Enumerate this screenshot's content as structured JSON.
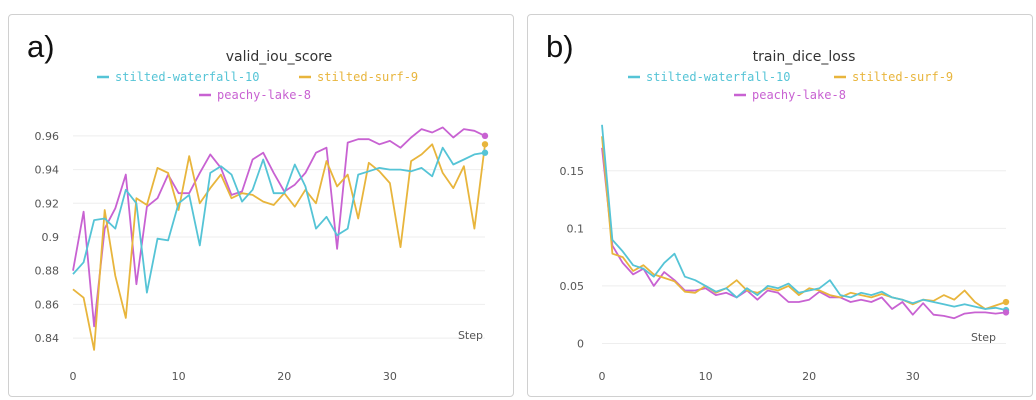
{
  "chart_data": [
    {
      "type": "line",
      "panel_label": "a)",
      "title": "valid_iou_score",
      "xlabel": "Step",
      "ylabel": "",
      "xlim": [
        0,
        39
      ],
      "ylim": [
        0.83,
        0.97
      ],
      "xticks": [
        0,
        10,
        20,
        30
      ],
      "yticks": [
        0.84,
        0.86,
        0.88,
        0.9,
        0.92,
        0.94,
        0.96
      ],
      "ytick_labels": [
        "0.84",
        "0.86",
        "0.88",
        "0.9",
        "0.92",
        "0.94",
        "0.96"
      ],
      "legend_position": "top",
      "grid": true,
      "series": [
        {
          "name": "stilted-waterfall-10",
          "color": "#55c4d6",
          "values": [
            0.878,
            0.885,
            0.91,
            0.911,
            0.905,
            0.928,
            0.92,
            0.867,
            0.899,
            0.898,
            0.92,
            0.925,
            0.895,
            0.938,
            0.942,
            0.937,
            0.921,
            0.928,
            0.946,
            0.926,
            0.926,
            0.943,
            0.93,
            0.905,
            0.912,
            0.901,
            0.905,
            0.937,
            0.939,
            0.941,
            0.94,
            0.94,
            0.939,
            0.941,
            0.936,
            0.953,
            0.943,
            0.946,
            0.949,
            0.95
          ]
        },
        {
          "name": "stilted-surf-9",
          "color": "#e8b53c",
          "values": [
            0.869,
            0.864,
            0.833,
            0.916,
            0.877,
            0.852,
            0.923,
            0.919,
            0.941,
            0.938,
            0.916,
            0.948,
            0.92,
            0.929,
            0.937,
            0.923,
            0.926,
            0.925,
            0.921,
            0.919,
            0.926,
            0.918,
            0.928,
            0.92,
            0.945,
            0.93,
            0.937,
            0.911,
            0.944,
            0.939,
            0.932,
            0.894,
            0.945,
            0.949,
            0.955,
            0.938,
            0.929,
            0.942,
            0.905,
            0.955
          ]
        },
        {
          "name": "peachy-lake-8",
          "color": "#c862d2",
          "values": [
            0.88,
            0.915,
            0.847,
            0.905,
            0.917,
            0.937,
            0.872,
            0.918,
            0.923,
            0.937,
            0.926,
            0.926,
            0.938,
            0.949,
            0.941,
            0.925,
            0.927,
            0.946,
            0.95,
            0.938,
            0.927,
            0.931,
            0.938,
            0.95,
            0.953,
            0.893,
            0.956,
            0.958,
            0.958,
            0.955,
            0.957,
            0.953,
            0.959,
            0.964,
            0.962,
            0.965,
            0.959,
            0.964,
            0.963,
            0.96
          ]
        }
      ]
    },
    {
      "type": "line",
      "panel_label": "b)",
      "title": "train_dice_loss",
      "xlabel": "Step",
      "ylabel": "",
      "xlim": [
        0,
        39
      ],
      "ylim": [
        -0.01,
        0.195
      ],
      "xticks": [
        0,
        10,
        20,
        30
      ],
      "yticks": [
        0,
        0.05,
        0.1,
        0.15
      ],
      "ytick_labels": [
        "0",
        "0.05",
        "0.1",
        "0.15"
      ],
      "legend_position": "top",
      "grid": true,
      "series": [
        {
          "name": "stilted-waterfall-10",
          "color": "#55c4d6",
          "values": [
            0.19,
            0.09,
            0.08,
            0.068,
            0.065,
            0.058,
            0.07,
            0.078,
            0.058,
            0.055,
            0.05,
            0.045,
            0.048,
            0.04,
            0.048,
            0.042,
            0.05,
            0.048,
            0.052,
            0.044,
            0.046,
            0.048,
            0.055,
            0.042,
            0.04,
            0.044,
            0.042,
            0.045,
            0.04,
            0.038,
            0.035,
            0.038,
            0.036,
            0.034,
            0.032,
            0.034,
            0.032,
            0.03,
            0.031,
            0.029
          ]
        },
        {
          "name": "stilted-surf-9",
          "color": "#e8b53c",
          "values": [
            0.18,
            0.078,
            0.075,
            0.063,
            0.068,
            0.06,
            0.057,
            0.054,
            0.045,
            0.044,
            0.05,
            0.044,
            0.048,
            0.055,
            0.046,
            0.044,
            0.048,
            0.046,
            0.05,
            0.042,
            0.048,
            0.046,
            0.042,
            0.04,
            0.044,
            0.042,
            0.04,
            0.043,
            0.04,
            0.038,
            0.034,
            0.038,
            0.037,
            0.042,
            0.038,
            0.046,
            0.036,
            0.03,
            0.033,
            0.036
          ]
        },
        {
          "name": "peachy-lake-8",
          "color": "#c862d2",
          "values": [
            0.17,
            0.085,
            0.07,
            0.06,
            0.065,
            0.05,
            0.062,
            0.055,
            0.046,
            0.046,
            0.048,
            0.042,
            0.044,
            0.04,
            0.046,
            0.038,
            0.046,
            0.044,
            0.036,
            0.036,
            0.038,
            0.045,
            0.04,
            0.04,
            0.036,
            0.038,
            0.036,
            0.04,
            0.03,
            0.036,
            0.025,
            0.035,
            0.025,
            0.024,
            0.022,
            0.026,
            0.027,
            0.027,
            0.026,
            0.027
          ]
        }
      ]
    }
  ]
}
